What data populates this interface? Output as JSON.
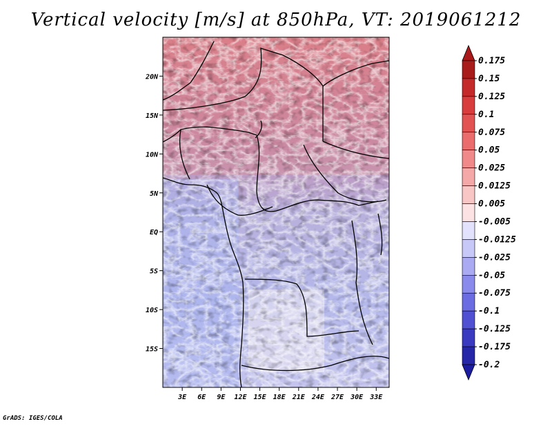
{
  "title": "Vertical velocity [m/s] at 850hPa, VT: 2019061212",
  "footer": "GrADS: IGES/COLA",
  "map": {
    "lon_range": [
      0,
      35
    ],
    "lat_range": [
      -20,
      25
    ],
    "lat_ticks": [
      {
        "value": 20,
        "label": "20N"
      },
      {
        "value": 15,
        "label": "15N"
      },
      {
        "value": 10,
        "label": "10N"
      },
      {
        "value": 5,
        "label": "5N"
      },
      {
        "value": 0,
        "label": "EQ"
      },
      {
        "value": -5,
        "label": "5S"
      },
      {
        "value": -10,
        "label": "10S"
      },
      {
        "value": -15,
        "label": "15S"
      }
    ],
    "lon_ticks": [
      {
        "value": 3,
        "label": "3E"
      },
      {
        "value": 6,
        "label": "6E"
      },
      {
        "value": 9,
        "label": "9E"
      },
      {
        "value": 12,
        "label": "12E"
      },
      {
        "value": 15,
        "label": "15E"
      },
      {
        "value": 18,
        "label": "18E"
      },
      {
        "value": 21,
        "label": "21E"
      },
      {
        "value": 24,
        "label": "24E"
      },
      {
        "value": 27,
        "label": "27E"
      },
      {
        "value": 30,
        "label": "30E"
      },
      {
        "value": 33,
        "label": "33E"
      }
    ]
  },
  "colorbar": {
    "levels": [
      {
        "label": "0.175",
        "color": "#a81c1c"
      },
      {
        "label": "0.15",
        "color": "#c42a2a"
      },
      {
        "label": "0.125",
        "color": "#d83c3c"
      },
      {
        "label": "0.1",
        "color": "#e25252"
      },
      {
        "label": "0.075",
        "color": "#ea6c6c"
      },
      {
        "label": "0.05",
        "color": "#f08a8a"
      },
      {
        "label": "0.025",
        "color": "#f5a8a8"
      },
      {
        "label": "0.0125",
        "color": "#f9c6c6"
      },
      {
        "label": "0.005",
        "color": "#fce2e2"
      },
      {
        "label": "-0.005",
        "color": "#ffffff"
      },
      {
        "label": "-0.0125",
        "color": "#e2e2fc"
      },
      {
        "label": "-0.025",
        "color": "#c8c8f8"
      },
      {
        "label": "-0.05",
        "color": "#aaaaf2"
      },
      {
        "label": "-0.075",
        "color": "#8a8aec"
      },
      {
        "label": "-0.1",
        "color": "#6c6ce2"
      },
      {
        "label": "-0.125",
        "color": "#5050d2"
      },
      {
        "label": "-0.175",
        "color": "#3a3ac0"
      },
      {
        "label": "-0.2",
        "color": "#2626a8"
      }
    ],
    "top_color": "#aa1a1a",
    "bottom_color": "#1c1ca0"
  }
}
